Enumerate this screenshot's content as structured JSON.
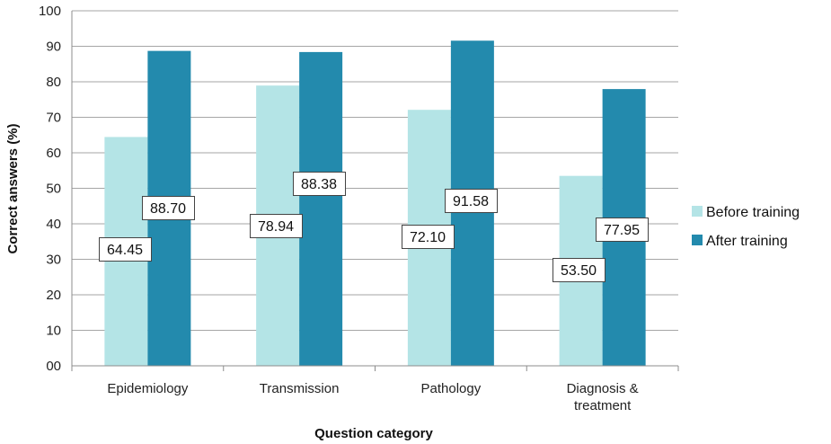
{
  "chart_data": {
    "type": "bar",
    "title": "",
    "xlabel": "Question category",
    "ylabel": "Correct answers (%)",
    "categories": [
      [
        "Epidemiology"
      ],
      [
        "Transmission"
      ],
      [
        "Pathology"
      ],
      [
        "Diagnosis &",
        "treatment"
      ]
    ],
    "series": [
      {
        "name": "Before training",
        "color": "#b4e4e6",
        "values": [
          64.45,
          78.94,
          72.1,
          53.5
        ],
        "labels": [
          "64.45",
          "78.94",
          "72.10",
          "53.50"
        ]
      },
      {
        "name": "After training",
        "color": "#238aad",
        "values": [
          88.7,
          88.38,
          91.58,
          77.95
        ],
        "labels": [
          "88.70",
          "88.38",
          "91.58",
          "77.95"
        ]
      }
    ],
    "ylim": [
      0,
      100
    ],
    "yticks": [
      "00",
      "10",
      "20",
      "30",
      "40",
      "50",
      "60",
      "70",
      "80",
      "90",
      "100"
    ],
    "grid": true,
    "legend_position": "right",
    "gridline_color": "#a6a6a6"
  }
}
